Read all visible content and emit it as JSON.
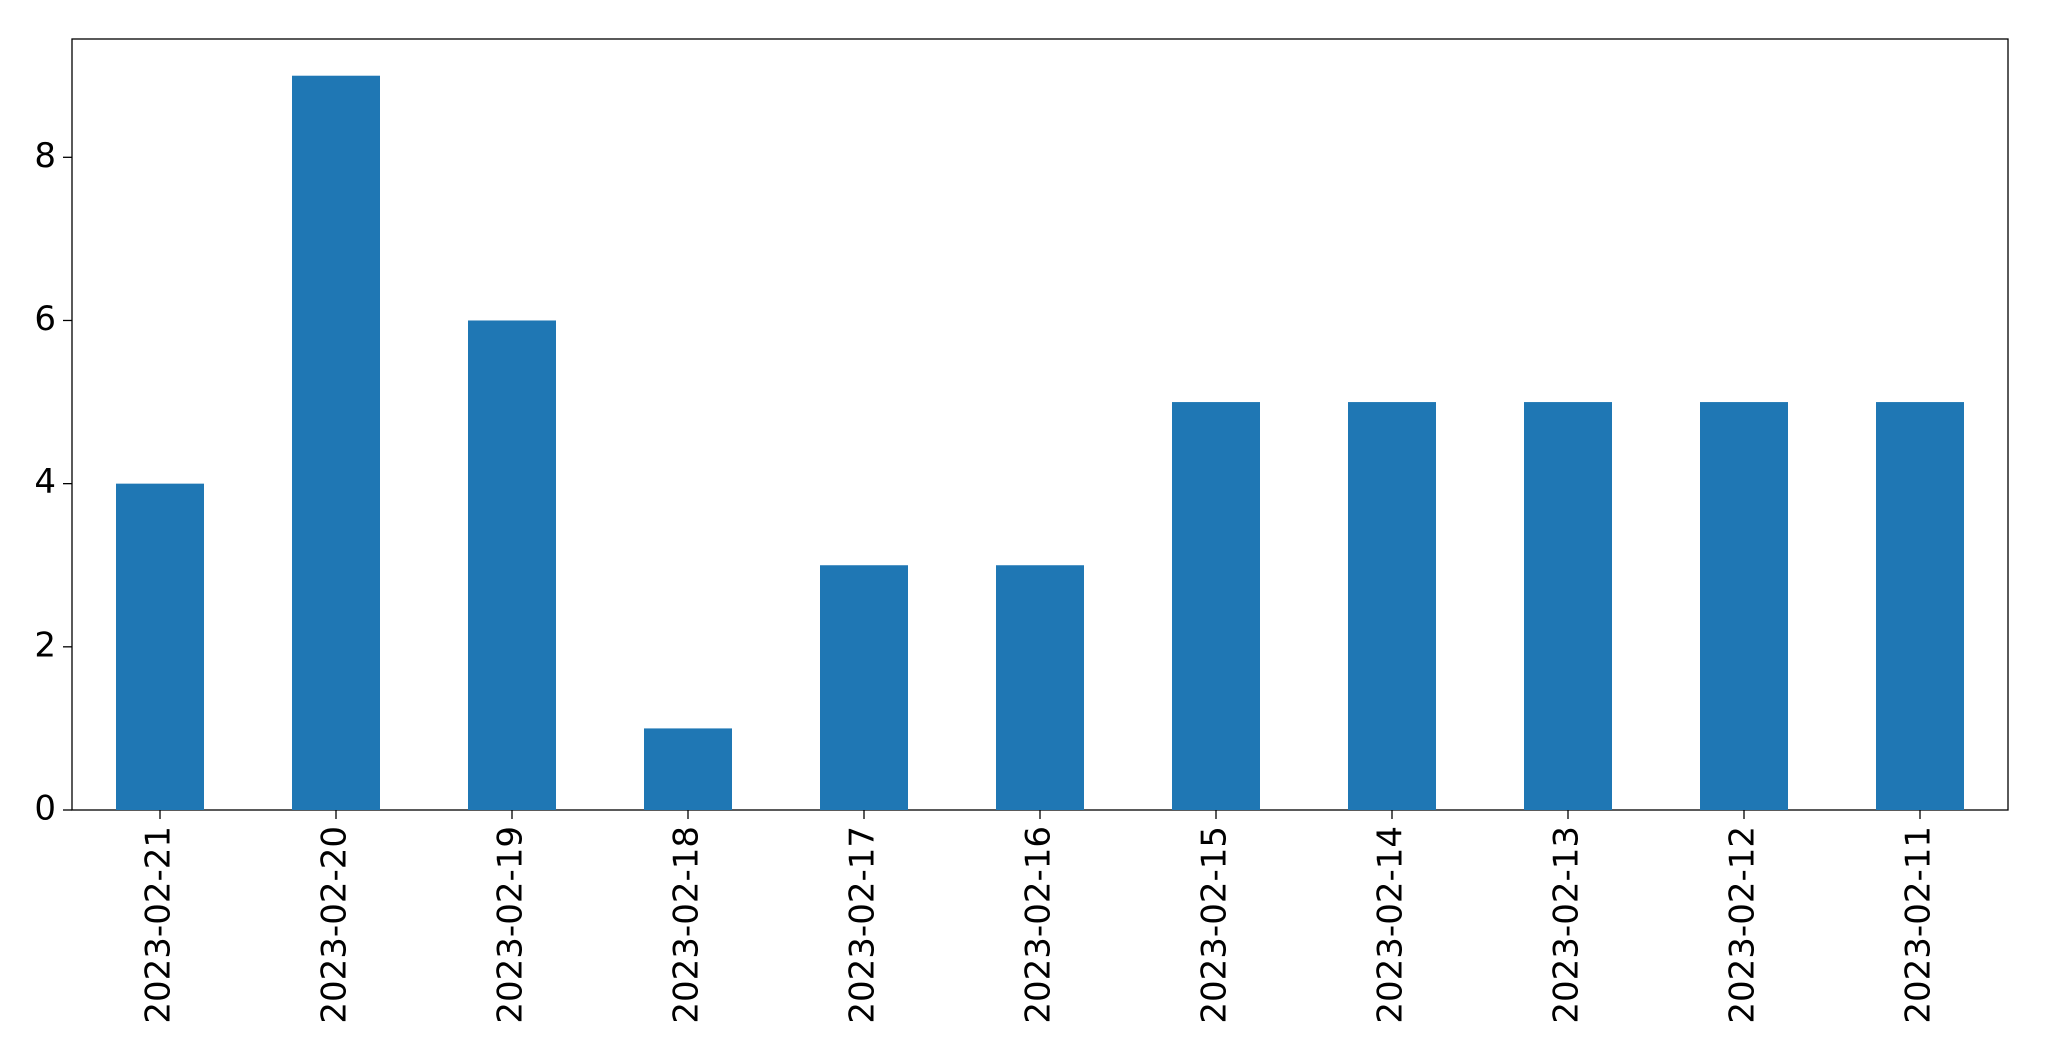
{
  "chart_data": {
    "type": "bar",
    "categories": [
      "2023-02-21",
      "2023-02-20",
      "2023-02-19",
      "2023-02-18",
      "2023-02-17",
      "2023-02-16",
      "2023-02-15",
      "2023-02-14",
      "2023-02-13",
      "2023-02-12",
      "2023-02-11"
    ],
    "values": [
      4,
      9,
      6,
      1,
      3,
      3,
      5,
      5,
      5,
      5,
      5
    ],
    "color": "#1f77b4",
    "ylim": [
      0,
      9.45
    ],
    "yticks": [
      0,
      2,
      4,
      6,
      8
    ],
    "grid": false
  }
}
